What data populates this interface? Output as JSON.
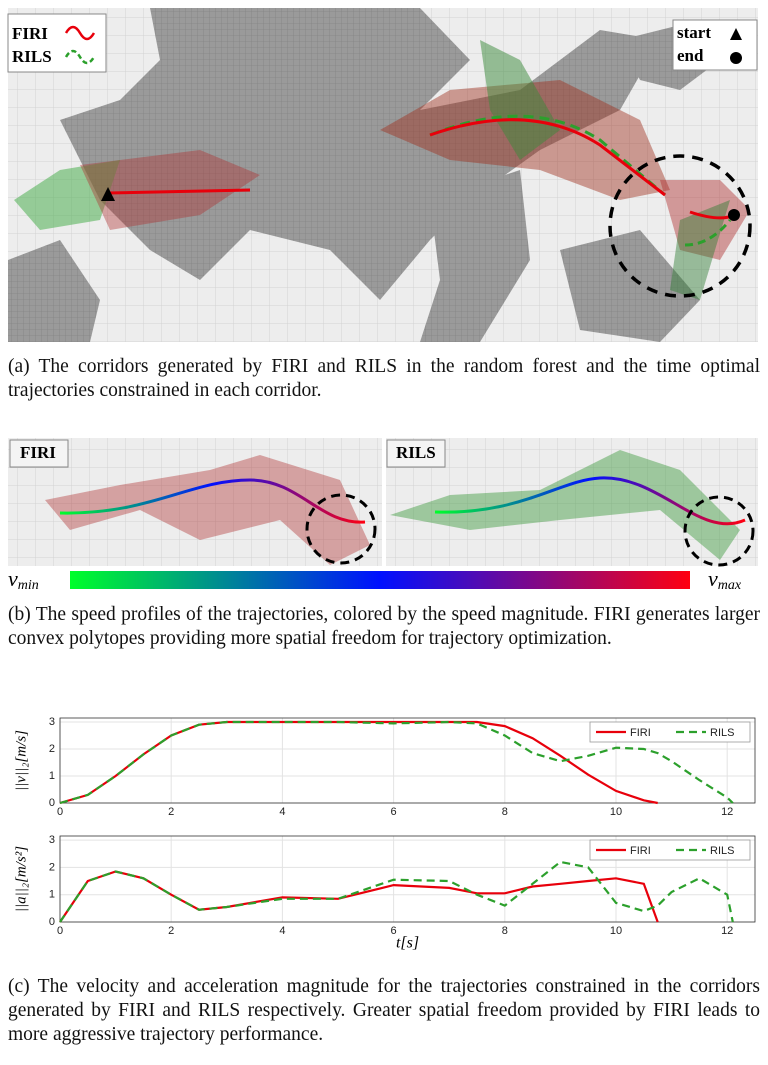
{
  "panel_a": {
    "legend": {
      "firi": "FIRI",
      "rils": "RILS",
      "start": "start",
      "end": "end"
    },
    "caption": "(a) The corridors generated by FIRI and RILS in the random forest and the time optimal trajectories constrained in each corridor."
  },
  "panel_b": {
    "left_label": "FIRI",
    "right_label": "RILS",
    "colorbar": {
      "min": {
        "symbol": "v",
        "subscript": "min"
      },
      "max": {
        "symbol": "v",
        "subscript": "max"
      }
    },
    "caption": "(b) The speed profiles of the trajectories, colored by the speed magnitude. FIRI generates larger convex polytopes providing more spatial freedom for trajectory optimization."
  },
  "chart_data": [
    {
      "type": "line",
      "ylabel": "||v||₂[m/s]",
      "x": [
        0,
        0.5,
        1,
        1.5,
        2,
        2.5,
        3,
        4,
        5,
        6,
        7,
        7.5,
        8,
        8.5,
        9,
        9.5,
        10,
        10.5,
        10.75,
        11,
        11.5,
        12,
        12.1
      ],
      "series": [
        {
          "name": "FIRI",
          "color": "#e8000b",
          "dash": false,
          "values": [
            0,
            0.3,
            1.0,
            1.8,
            2.5,
            2.9,
            3.0,
            3.0,
            3.0,
            3.0,
            3.0,
            3.0,
            2.85,
            2.4,
            1.75,
            1.05,
            0.45,
            0.1,
            0,
            null,
            null,
            null,
            null
          ]
        },
        {
          "name": "RILS",
          "color": "#2ca02c",
          "dash": true,
          "values": [
            0,
            0.3,
            1.0,
            1.8,
            2.5,
            2.9,
            3.0,
            3.0,
            3.0,
            2.95,
            3.0,
            2.95,
            2.5,
            1.85,
            1.55,
            1.75,
            2.05,
            2.0,
            1.85,
            1.55,
            0.85,
            0.2,
            0
          ]
        }
      ],
      "xlim": [
        0,
        12.5
      ],
      "ylim": [
        0,
        3.15
      ],
      "xticks": [
        0,
        2,
        4,
        6,
        8,
        10,
        12
      ],
      "yticks": [
        0,
        1,
        2,
        3
      ],
      "grid": true,
      "legend": "upper right"
    },
    {
      "type": "line",
      "ylabel": "||a||₂[m/s²]",
      "xlabel": "t[s]",
      "x": [
        0,
        0.5,
        1,
        1.5,
        2,
        2.5,
        3,
        4,
        5,
        6,
        7,
        7.5,
        8,
        8.5,
        9,
        9.5,
        10,
        10.5,
        10.75,
        11,
        11.5,
        12,
        12.1
      ],
      "series": [
        {
          "name": "FIRI",
          "color": "#e8000b",
          "dash": false,
          "values": [
            0,
            1.5,
            1.85,
            1.6,
            1.0,
            0.45,
            0.55,
            0.9,
            0.85,
            1.35,
            1.25,
            1.05,
            1.05,
            1.3,
            1.4,
            1.5,
            1.6,
            1.4,
            0,
            null,
            null,
            null,
            null
          ]
        },
        {
          "name": "RILS",
          "color": "#2ca02c",
          "dash": true,
          "values": [
            0,
            1.5,
            1.85,
            1.6,
            1.0,
            0.45,
            0.55,
            0.85,
            0.85,
            1.55,
            1.5,
            1.0,
            0.6,
            1.4,
            2.2,
            2.0,
            0.7,
            0.4,
            0.6,
            1.1,
            1.6,
            1.0,
            0
          ]
        }
      ],
      "xlim": [
        0,
        12.5
      ],
      "ylim": [
        0,
        3.15
      ],
      "xticks": [
        0,
        2,
        4,
        6,
        8,
        10,
        12
      ],
      "yticks": [
        0,
        1,
        2,
        3
      ],
      "grid": true,
      "legend": "upper right"
    }
  ],
  "panel_c": {
    "caption": "(c) The velocity and acceleration magnitude for the trajectories constrained in the corridors generated by FIRI and RILS respectively. Greater spatial freedom provided by FIRI leads to more aggressive trajectory performance."
  }
}
